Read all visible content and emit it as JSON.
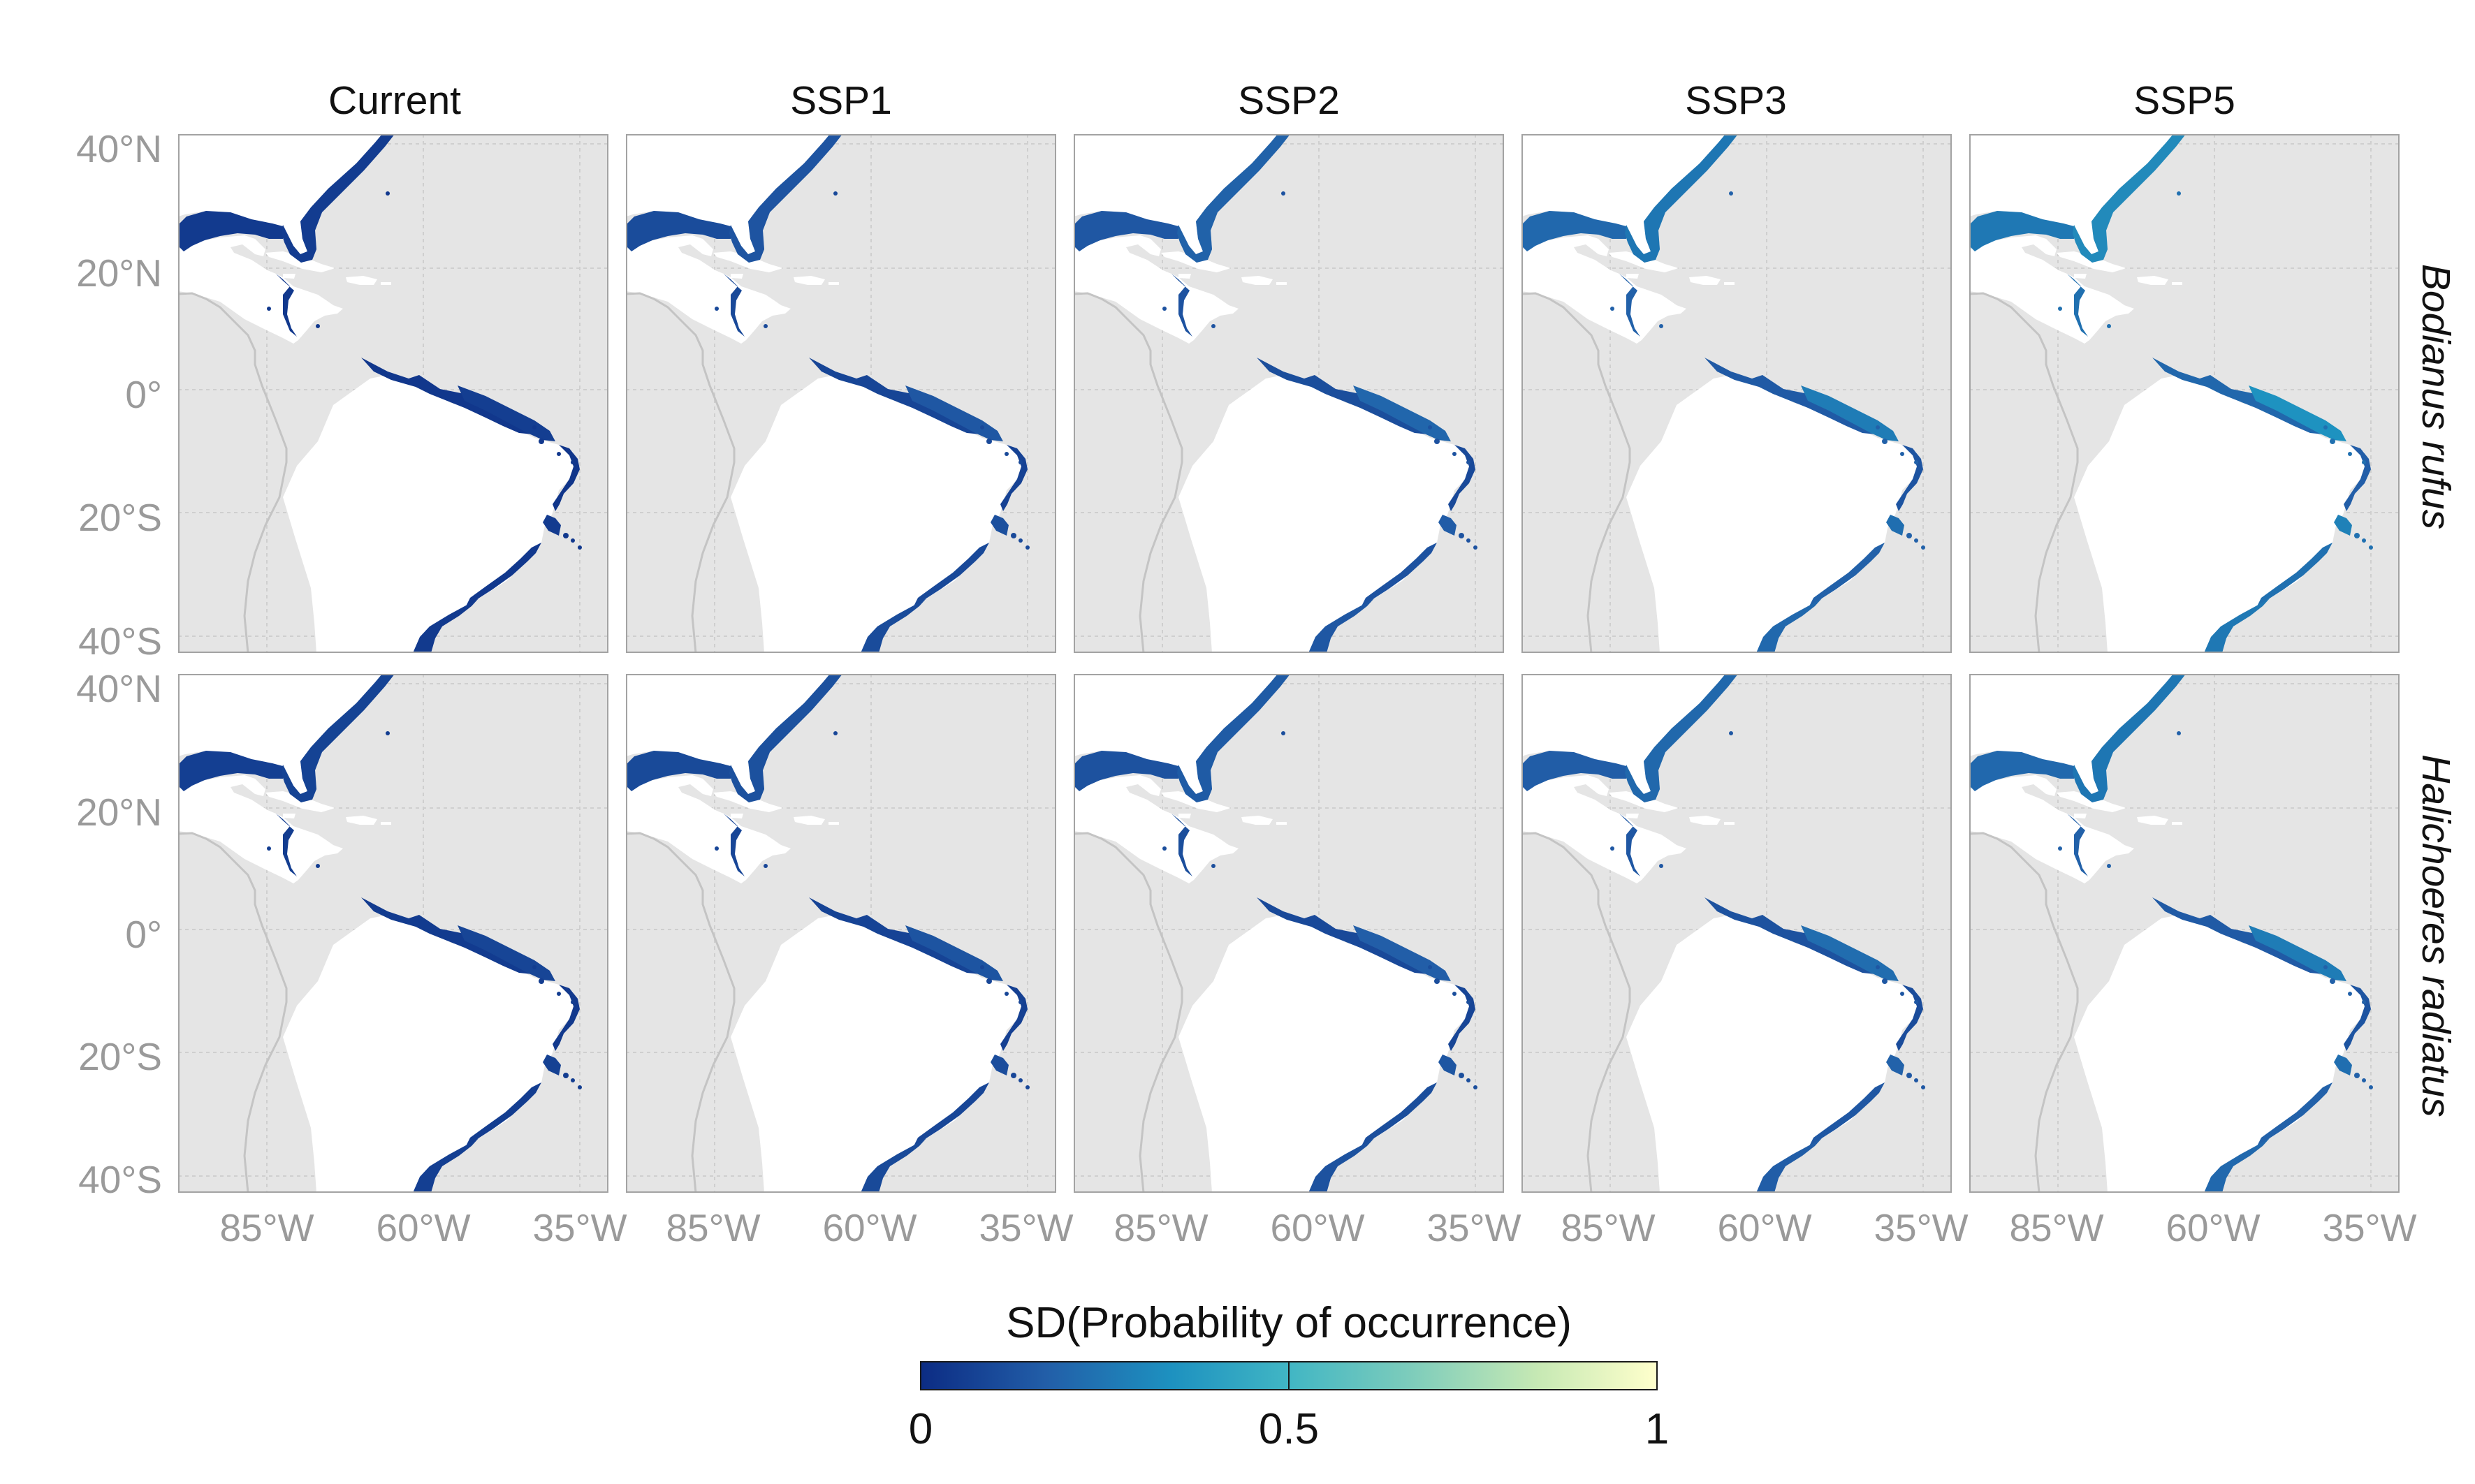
{
  "chart_data": {
    "type": "heatmap",
    "kind": "faceted species distribution maps",
    "columns": [
      "Current",
      "SSP1",
      "SSP2",
      "SSP3",
      "SSP5"
    ],
    "rows": [
      "Bodianus rufus",
      "Halichoeres radiatus"
    ],
    "x_ticks": [
      "85°W",
      "60°W",
      "35°W"
    ],
    "y_ticks": [
      "40°N",
      "20°N",
      "0°",
      "20°S",
      "40°S"
    ],
    "x_range_deg": [
      -100,
      -28
    ],
    "y_range_deg": [
      -42,
      42
    ],
    "legend": {
      "title": "SD(Probability of occurrence)",
      "ticks": [
        "0",
        "0.5",
        "1"
      ],
      "range": [
        0,
        1
      ],
      "colors": [
        "#0c2c84",
        "#225ea8",
        "#1d91c0",
        "#41b6c4",
        "#7fcdbb",
        "#c7e9b4",
        "#ffffcc"
      ]
    },
    "panel_sd_level": [
      [
        0.05,
        0.12,
        0.16,
        0.22,
        0.28
      ],
      [
        0.07,
        0.11,
        0.14,
        0.18,
        0.22
      ]
    ],
    "colors": {
      "ocean": "#e5e5e5",
      "land": "#ffffff",
      "border": "#c4c4c4",
      "frame": "#a3a3a3",
      "grid": "#cfcfcf"
    }
  }
}
